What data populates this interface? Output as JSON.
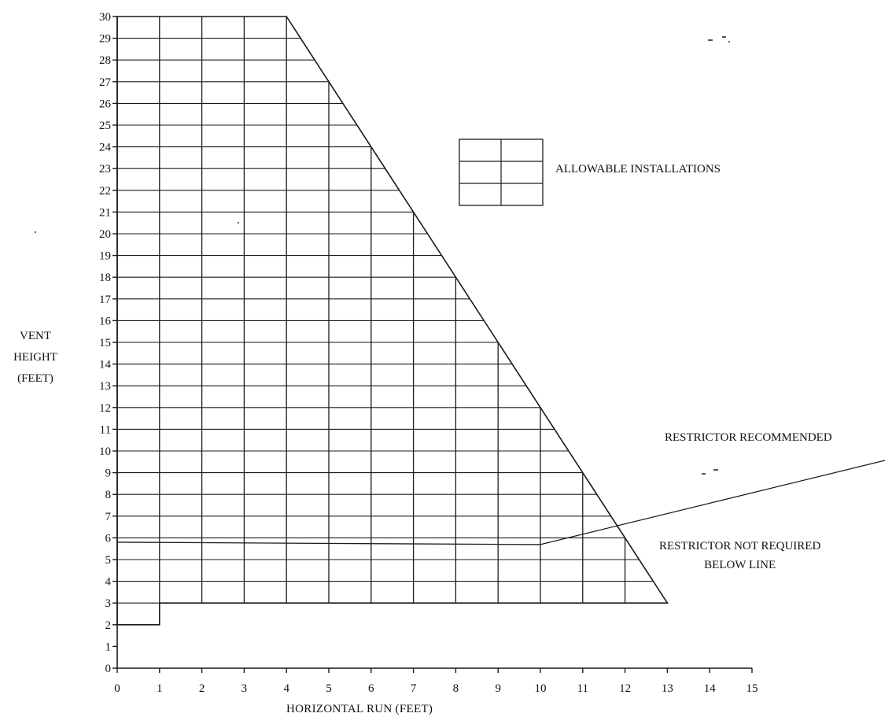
{
  "chart_data": {
    "type": "area",
    "title": "",
    "xlabel": "HORIZONTAL RUN (FEET)",
    "ylabel_lines": [
      "VENT",
      "HEIGHT",
      "(FEET)"
    ],
    "xlim": [
      0,
      15
    ],
    "ylim": [
      0,
      30
    ],
    "x_ticks": [
      0,
      1,
      2,
      3,
      4,
      5,
      6,
      7,
      8,
      9,
      10,
      11,
      12,
      13,
      14,
      15
    ],
    "y_ticks": [
      0,
      1,
      2,
      3,
      4,
      5,
      6,
      7,
      8,
      9,
      10,
      11,
      12,
      13,
      14,
      15,
      16,
      17,
      18,
      19,
      20,
      21,
      22,
      23,
      24,
      25,
      26,
      27,
      28,
      29,
      30
    ],
    "y_tick_labels": [
      "0",
      "1",
      "2",
      "3",
      "4",
      "5",
      "6",
      "7",
      "8",
      "9",
      "10",
      "11",
      "12",
      "13",
      "14",
      "15",
      "16",
      "17",
      "18",
      "19",
      "20",
      "21",
      "22",
      "23",
      "24",
      "25",
      "26",
      "27",
      "28",
      "29",
      "30"
    ],
    "allowable_region_boundary": [
      {
        "x": 0,
        "y": 30
      },
      {
        "x": 4,
        "y": 30
      },
      {
        "x": 5,
        "y": 27
      },
      {
        "x": 6,
        "y": 24
      },
      {
        "x": 7,
        "y": 21
      },
      {
        "x": 8,
        "y": 18
      },
      {
        "x": 9,
        "y": 15
      },
      {
        "x": 10,
        "y": 12
      },
      {
        "x": 11,
        "y": 9
      },
      {
        "x": 12,
        "y": 6
      },
      {
        "x": 13,
        "y": 3
      },
      {
        "x": 1,
        "y": 3
      },
      {
        "x": 1,
        "y": 2
      },
      {
        "x": 0,
        "y": 2
      }
    ],
    "restrictor_line": {
      "y": 5.8,
      "x_end": 10
    },
    "legend": {
      "label": "ALLOWABLE INSTALLATIONS",
      "position": "top-right"
    },
    "annotations": {
      "restrictor_recommended": "RESTRICTOR RECOMMENDED",
      "restrictor_not_required": [
        "RESTRICTOR NOT REQUIRED",
        "BELOW LINE"
      ]
    },
    "grid": true
  }
}
